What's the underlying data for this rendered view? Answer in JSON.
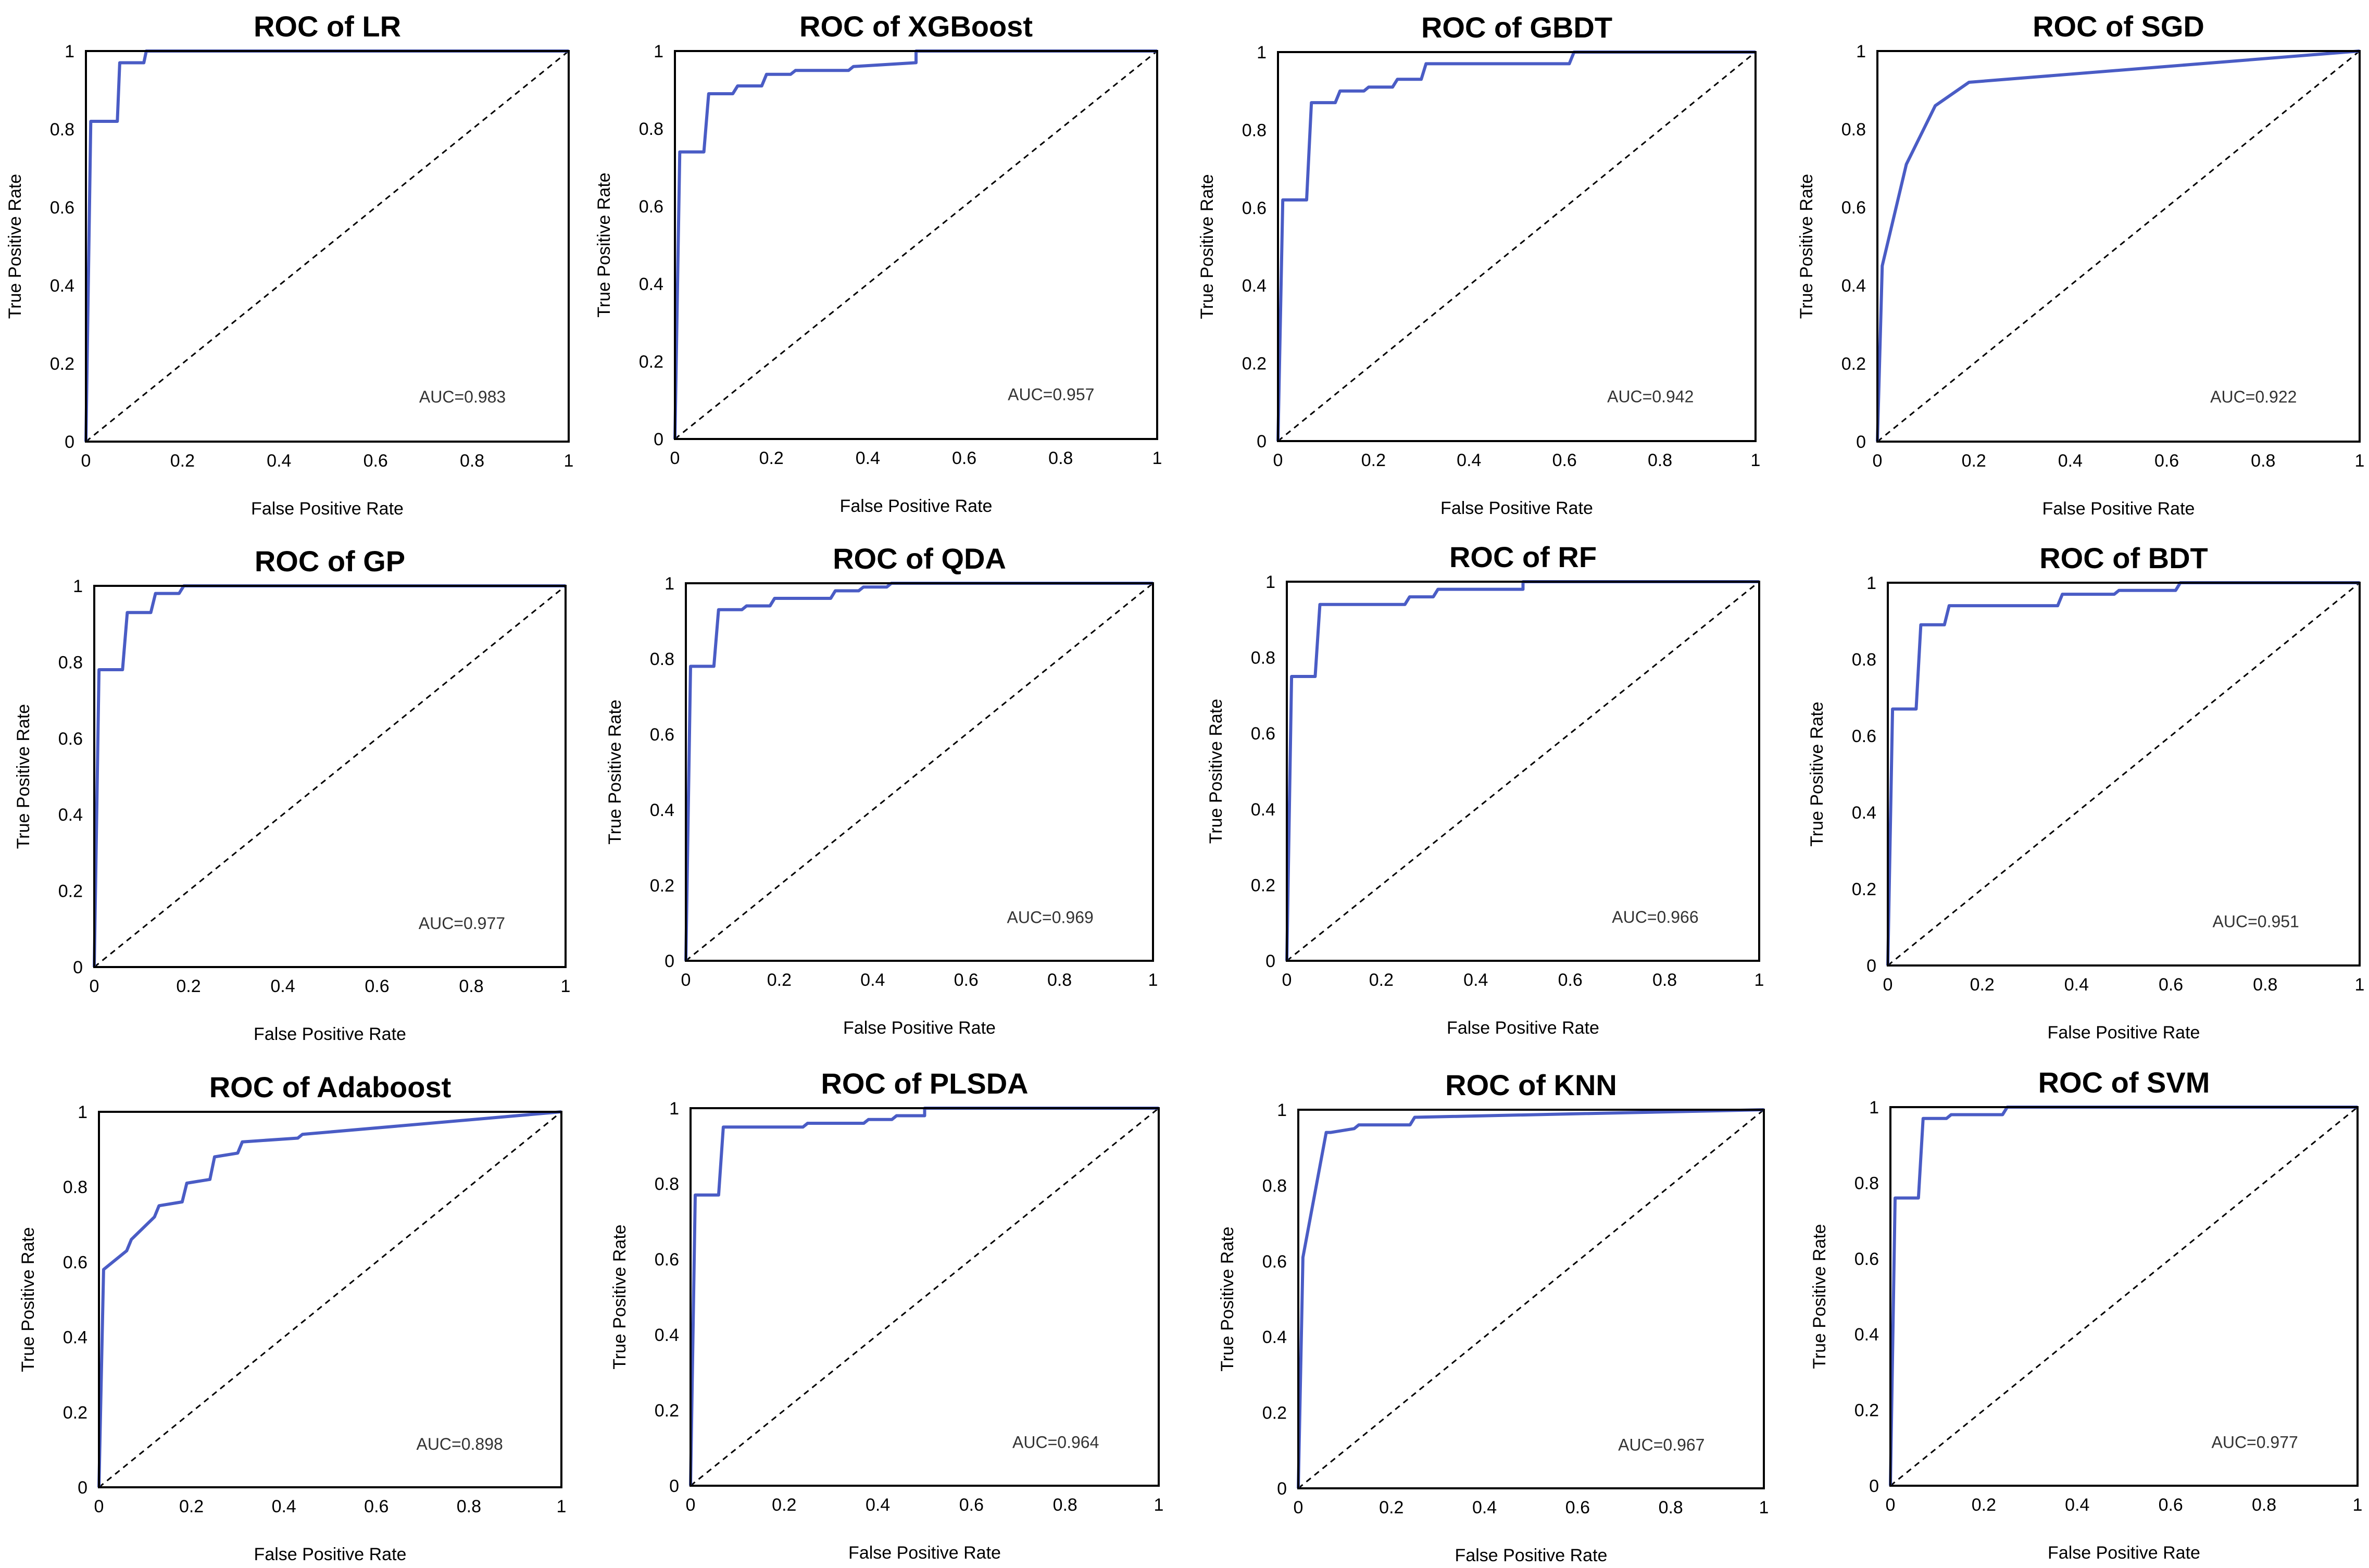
{
  "colors": {
    "curve": "#4a5cc5",
    "frame": "#000000"
  },
  "chart_data": [
    {
      "type": "line",
      "title": "ROC of LR",
      "xlabel": "False Positive Rate",
      "ylabel": "True Positive Rate",
      "xlim": [
        0,
        1
      ],
      "ylim": [
        0,
        1
      ],
      "xticks": [
        "0",
        "0.2",
        "0.4",
        "0.6",
        "0.8",
        "1"
      ],
      "yticks": [
        "0",
        "0.2",
        "0.4",
        "0.6",
        "0.8",
        "1"
      ],
      "annotation": "AUC=0.983",
      "diagonal": true,
      "series": [
        {
          "name": "ROC",
          "x": [
            0,
            0.01,
            0.01,
            0.065,
            0.07,
            0.07,
            0.12,
            0.125,
            1
          ],
          "y": [
            0,
            0.82,
            0.82,
            0.82,
            0.97,
            0.97,
            0.97,
            1,
            1
          ]
        }
      ]
    },
    {
      "type": "line",
      "title": "ROC of XGBoost",
      "xlabel": "False Positive Rate",
      "ylabel": "True Positive Rate",
      "xlim": [
        0,
        1
      ],
      "ylim": [
        0,
        1
      ],
      "xticks": [
        "0",
        "0.2",
        "0.4",
        "0.6",
        "0.8",
        "1"
      ],
      "yticks": [
        "0",
        "0.2",
        "0.4",
        "0.6",
        "0.8",
        "1"
      ],
      "annotation": "AUC=0.957",
      "diagonal": true,
      "series": [
        {
          "name": "ROC",
          "x": [
            0,
            0.01,
            0.06,
            0.07,
            0.12,
            0.13,
            0.18,
            0.19,
            0.24,
            0.25,
            0.36,
            0.37,
            0.5,
            0.5,
            1
          ],
          "y": [
            0,
            0.74,
            0.74,
            0.89,
            0.89,
            0.91,
            0.91,
            0.94,
            0.94,
            0.95,
            0.95,
            0.96,
            0.97,
            1,
            1
          ]
        }
      ]
    },
    {
      "type": "line",
      "title": "ROC of GBDT",
      "xlabel": "False Positive Rate",
      "ylabel": "True Positive Rate",
      "xlim": [
        0,
        1
      ],
      "ylim": [
        0,
        1
      ],
      "xticks": [
        "0",
        "0.2",
        "0.4",
        "0.6",
        "0.8",
        "1"
      ],
      "yticks": [
        "0",
        "0.2",
        "0.4",
        "0.6",
        "0.8",
        "1"
      ],
      "annotation": "AUC=0.942",
      "diagonal": true,
      "series": [
        {
          "name": "ROC",
          "x": [
            0,
            0.01,
            0.06,
            0.07,
            0.12,
            0.13,
            0.18,
            0.19,
            0.24,
            0.25,
            0.3,
            0.31,
            0.61,
            0.62,
            1
          ],
          "y": [
            0,
            0.62,
            0.62,
            0.87,
            0.87,
            0.9,
            0.9,
            0.91,
            0.91,
            0.93,
            0.93,
            0.97,
            0.97,
            1,
            1
          ]
        }
      ]
    },
    {
      "type": "line",
      "title": "ROC of SGD",
      "xlabel": "False Positive Rate",
      "ylabel": "True Positive Rate",
      "xlim": [
        0,
        1
      ],
      "ylim": [
        0,
        1
      ],
      "xticks": [
        "0",
        "0.2",
        "0.4",
        "0.6",
        "0.8",
        "1"
      ],
      "yticks": [
        "0",
        "0.2",
        "0.4",
        "0.6",
        "0.8",
        "1"
      ],
      "annotation": "AUC=0.922",
      "diagonal": true,
      "series": [
        {
          "name": "ROC",
          "x": [
            0,
            0.01,
            0.06,
            0.12,
            0.19,
            1
          ],
          "y": [
            0,
            0.45,
            0.71,
            0.86,
            0.92,
            1
          ]
        }
      ]
    },
    {
      "type": "line",
      "title": "ROC of GP",
      "xlabel": "False Positive Rate",
      "ylabel": "True Positive Rate",
      "xlim": [
        0,
        1
      ],
      "ylim": [
        0,
        1
      ],
      "xticks": [
        "0",
        "0.2",
        "0.4",
        "0.6",
        "0.8",
        "1"
      ],
      "yticks": [
        "0",
        "0.2",
        "0.4",
        "0.6",
        "0.8",
        "1"
      ],
      "annotation": "AUC=0.977",
      "diagonal": true,
      "series": [
        {
          "name": "ROC",
          "x": [
            0,
            0.01,
            0.06,
            0.07,
            0.12,
            0.13,
            0.18,
            0.19,
            1
          ],
          "y": [
            0,
            0.78,
            0.78,
            0.93,
            0.93,
            0.98,
            0.98,
            1,
            1
          ]
        }
      ]
    },
    {
      "type": "line",
      "title": "ROC of QDA",
      "xlabel": "False Positive Rate",
      "ylabel": "True Positive Rate",
      "xlim": [
        0,
        1
      ],
      "ylim": [
        0,
        1
      ],
      "xticks": [
        "0",
        "0.2",
        "0.4",
        "0.6",
        "0.8",
        "1"
      ],
      "yticks": [
        "0",
        "0.2",
        "0.4",
        "0.6",
        "0.8",
        "1"
      ],
      "annotation": "AUC=0.969",
      "diagonal": true,
      "series": [
        {
          "name": "ROC",
          "x": [
            0,
            0.01,
            0.06,
            0.07,
            0.12,
            0.13,
            0.18,
            0.19,
            0.31,
            0.32,
            0.37,
            0.38,
            0.43,
            0.44,
            1
          ],
          "y": [
            0,
            0.78,
            0.78,
            0.93,
            0.93,
            0.94,
            0.94,
            0.96,
            0.96,
            0.98,
            0.98,
            0.99,
            0.99,
            1,
            1
          ]
        }
      ]
    },
    {
      "type": "line",
      "title": "ROC of RF",
      "xlabel": "False Positive Rate",
      "ylabel": "True Positive Rate",
      "xlim": [
        0,
        1
      ],
      "ylim": [
        0,
        1
      ],
      "xticks": [
        "0",
        "0.2",
        "0.4",
        "0.6",
        "0.8",
        "1"
      ],
      "yticks": [
        "0",
        "0.2",
        "0.4",
        "0.6",
        "0.8",
        "1"
      ],
      "annotation": "AUC=0.966",
      "diagonal": true,
      "series": [
        {
          "name": "ROC",
          "x": [
            0,
            0.01,
            0.06,
            0.07,
            0.25,
            0.26,
            0.31,
            0.32,
            0.5,
            0.5,
            1
          ],
          "y": [
            0,
            0.75,
            0.75,
            0.94,
            0.94,
            0.96,
            0.96,
            0.98,
            0.98,
            1,
            1
          ]
        }
      ]
    },
    {
      "type": "line",
      "title": "ROC of BDT",
      "xlabel": "False Positive Rate",
      "ylabel": "True Positive Rate",
      "xlim": [
        0,
        1
      ],
      "ylim": [
        0,
        1
      ],
      "xticks": [
        "0",
        "0.2",
        "0.4",
        "0.6",
        "0.8",
        "1"
      ],
      "yticks": [
        "0",
        "0.2",
        "0.4",
        "0.6",
        "0.8",
        "1"
      ],
      "annotation": "AUC=0.951",
      "diagonal": true,
      "series": [
        {
          "name": "ROC",
          "x": [
            0,
            0.01,
            0.06,
            0.07,
            0.12,
            0.13,
            0.36,
            0.37,
            0.48,
            0.49,
            0.61,
            0.62,
            1
          ],
          "y": [
            0,
            0.67,
            0.67,
            0.89,
            0.89,
            0.94,
            0.94,
            0.97,
            0.97,
            0.98,
            0.98,
            1,
            1
          ]
        }
      ]
    },
    {
      "type": "line",
      "title": "ROC of Adaboost",
      "xlabel": "False Positive Rate",
      "ylabel": "True Positive Rate",
      "xlim": [
        0,
        1
      ],
      "ylim": [
        0,
        1
      ],
      "xticks": [
        "0",
        "0.2",
        "0.4",
        "0.6",
        "0.8",
        "1"
      ],
      "yticks": [
        "0",
        "0.2",
        "0.4",
        "0.6",
        "0.8",
        "1"
      ],
      "annotation": "AUC=0.898",
      "diagonal": true,
      "series": [
        {
          "name": "ROC",
          "x": [
            0,
            0.01,
            0.06,
            0.07,
            0.12,
            0.13,
            0.18,
            0.19,
            0.24,
            0.25,
            0.3,
            0.31,
            0.43,
            0.44,
            1
          ],
          "y": [
            0,
            0.58,
            0.63,
            0.66,
            0.72,
            0.75,
            0.76,
            0.81,
            0.82,
            0.88,
            0.89,
            0.92,
            0.93,
            0.94,
            1
          ]
        }
      ]
    },
    {
      "type": "line",
      "title": "ROC of PLSDA",
      "xlabel": "False Positive Rate",
      "ylabel": "True Positive Rate",
      "xlim": [
        0,
        1
      ],
      "ylim": [
        0,
        1
      ],
      "xticks": [
        "0",
        "0.2",
        "0.4",
        "0.6",
        "0.8",
        "1"
      ],
      "yticks": [
        "0",
        "0.2",
        "0.4",
        "0.6",
        "0.8",
        "1"
      ],
      "annotation": "AUC=0.964",
      "diagonal": true,
      "series": [
        {
          "name": "ROC",
          "x": [
            0,
            0.01,
            0.06,
            0.07,
            0.24,
            0.25,
            0.37,
            0.38,
            0.43,
            0.44,
            0.5,
            0.5,
            1
          ],
          "y": [
            0,
            0.77,
            0.77,
            0.95,
            0.95,
            0.96,
            0.96,
            0.97,
            0.97,
            0.98,
            0.98,
            1,
            1
          ]
        }
      ]
    },
    {
      "type": "line",
      "title": "ROC of KNN",
      "xlabel": "False Positive Rate",
      "ylabel": "True Positive Rate",
      "xlim": [
        0,
        1
      ],
      "ylim": [
        0,
        1
      ],
      "xticks": [
        "0",
        "0.2",
        "0.4",
        "0.6",
        "0.8",
        "1"
      ],
      "yticks": [
        "0",
        "0.2",
        "0.4",
        "0.6",
        "0.8",
        "1"
      ],
      "annotation": "AUC=0.967",
      "diagonal": true,
      "series": [
        {
          "name": "ROC",
          "x": [
            0,
            0.01,
            0.06,
            0.07,
            0.12,
            0.13,
            0.24,
            0.25,
            1
          ],
          "y": [
            0,
            0.61,
            0.94,
            0.94,
            0.95,
            0.96,
            0.96,
            0.98,
            1
          ]
        }
      ]
    },
    {
      "type": "line",
      "title": "ROC of SVM",
      "xlabel": "False Positive Rate",
      "ylabel": "True Positive Rate",
      "xlim": [
        0,
        1
      ],
      "ylim": [
        0,
        1
      ],
      "xticks": [
        "0",
        "0.2",
        "0.4",
        "0.6",
        "0.8",
        "1"
      ],
      "yticks": [
        "0",
        "0.2",
        "0.4",
        "0.6",
        "0.8",
        "1"
      ],
      "annotation": "AUC=0.977",
      "diagonal": true,
      "series": [
        {
          "name": "ROC",
          "x": [
            0,
            0.01,
            0.06,
            0.07,
            0.12,
            0.13,
            0.24,
            0.25,
            1
          ],
          "y": [
            0,
            0.76,
            0.76,
            0.97,
            0.97,
            0.98,
            0.98,
            1,
            1
          ]
        }
      ]
    }
  ]
}
